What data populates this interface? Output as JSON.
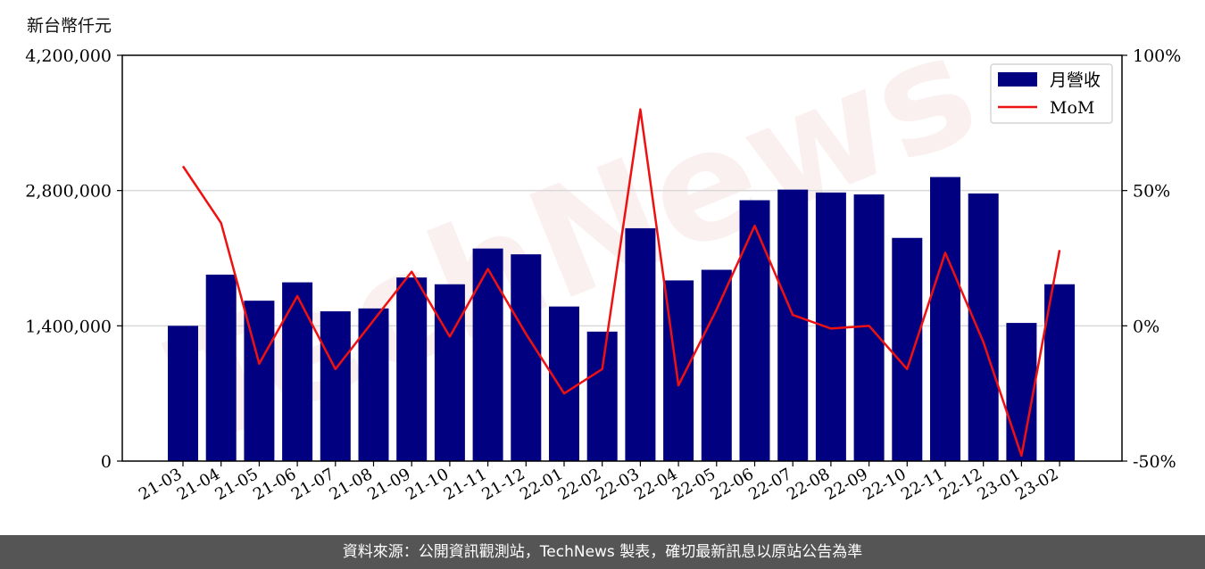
{
  "page": {
    "footer": "資料來源：公開資訊觀測站，TechNews 製表，確切最新訊息以原站公告為準",
    "watermark": "TechNews"
  },
  "chart_data": {
    "type": "bar",
    "ylabel": "新台幣仟元",
    "categories": [
      "21-03",
      "21-04",
      "21-05",
      "21-06",
      "21-07",
      "21-08",
      "21-09",
      "21-10",
      "21-11",
      "21-12",
      "22-01",
      "22-02",
      "22-03",
      "22-04",
      "22-05",
      "22-06",
      "22-07",
      "22-08",
      "22-09",
      "22-10",
      "22-11",
      "22-12",
      "23-01",
      "23-02"
    ],
    "series": [
      {
        "name": "月營收",
        "axis": "left",
        "type": "bar",
        "values": [
          1400000,
          1930000,
          1660000,
          1850000,
          1550000,
          1580000,
          1900000,
          1830000,
          2200000,
          2140000,
          1600000,
          1340000,
          2410000,
          1870000,
          1980000,
          2700000,
          2810000,
          2780000,
          2760000,
          2310000,
          2940000,
          2770000,
          1430000,
          1830000
        ]
      },
      {
        "name": "MoM",
        "axis": "right",
        "type": "line",
        "values": [
          59,
          38,
          -14,
          11,
          -16,
          2,
          20,
          -4,
          21,
          -3,
          -25,
          -16,
          80,
          -22,
          6,
          37,
          4,
          -1,
          0,
          -16,
          27,
          -6,
          -48,
          28
        ]
      }
    ],
    "y_left": {
      "min": 0,
      "max": 4200000,
      "ticks": [
        "0",
        "1,400,000",
        "2,800,000",
        "4,200,000"
      ],
      "tick_values": [
        0,
        1400000,
        2800000,
        4200000
      ]
    },
    "y_right": {
      "min": -50,
      "max": 100,
      "ticks": [
        "-50%",
        "0%",
        "50%",
        "100%"
      ],
      "tick_values": [
        -50,
        0,
        50,
        100
      ]
    },
    "grid": "horizontal",
    "legend_position": "top-right",
    "colors": {
      "bar": "#000080",
      "line": "#ee1111",
      "grid": "#d8d8d8"
    }
  }
}
